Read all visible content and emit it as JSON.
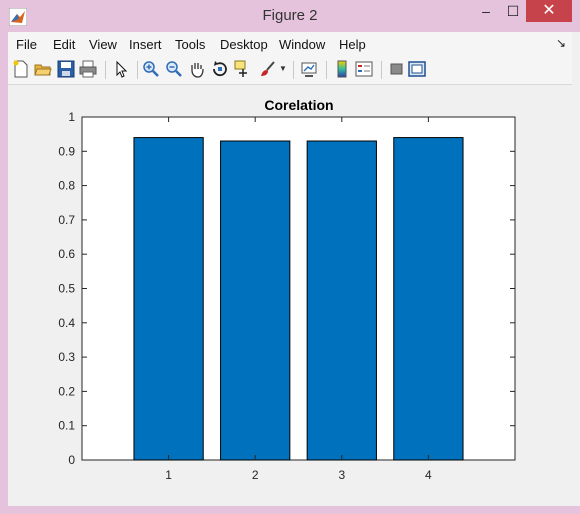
{
  "window": {
    "title": "Figure 2",
    "minimize": "–",
    "maximize": "☐",
    "close": "✕"
  },
  "menu": [
    "File",
    "Edit",
    "View",
    "Insert",
    "Tools",
    "Desktop",
    "Window",
    "Help"
  ],
  "toolbar_icons": [
    "new-figure-icon",
    "open-file-icon",
    "save-icon",
    "print-icon",
    "edit-plot-arrow-icon",
    "zoom-in-icon",
    "zoom-out-icon",
    "pan-hand-icon",
    "rotate-3d-icon",
    "data-cursor-icon",
    "brush-icon",
    "link-plot-icon",
    "insert-colorbar-icon",
    "insert-legend-icon",
    "hide-plot-tools-icon",
    "show-plot-tools-icon"
  ],
  "colors": {
    "bar": "#0072BD",
    "axes_bg": "#ffffff",
    "figure_bg": "#f0f0f0"
  },
  "chart_data": {
    "type": "bar",
    "title": "Corelation",
    "categories": [
      "1",
      "2",
      "3",
      "4"
    ],
    "values": [
      0.94,
      0.93,
      0.93,
      0.94
    ],
    "xlim": [
      0,
      5
    ],
    "ylim": [
      0,
      1
    ],
    "yticks": [
      "0",
      "0.1",
      "0.2",
      "0.3",
      "0.4",
      "0.5",
      "0.6",
      "0.7",
      "0.8",
      "0.9",
      "1"
    ],
    "grid": false
  }
}
